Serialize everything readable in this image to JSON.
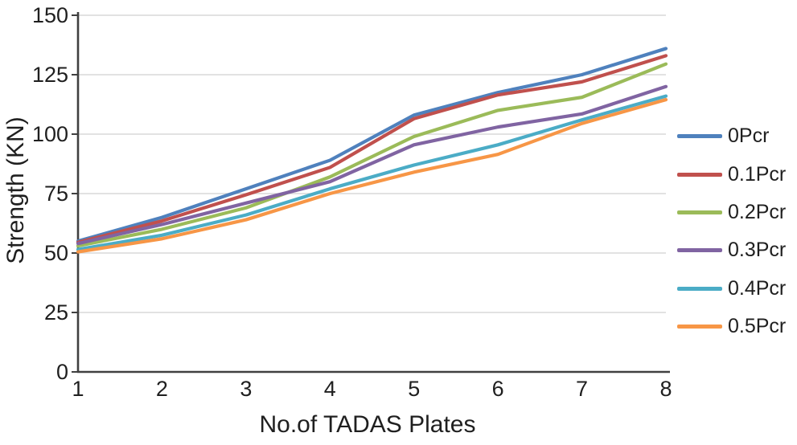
{
  "figure": {
    "background": "#ffffff",
    "axis_color": "#404040",
    "grid_color": "#d9d9d9",
    "text_color": "#1f1f1f"
  },
  "chart_data": {
    "type": "line",
    "title": "",
    "xlabel": "No.of TADAS Plates",
    "ylabel": "Strength (KN)",
    "x": [
      1,
      2,
      3,
      4,
      5,
      6,
      7,
      8
    ],
    "xticks": [
      1,
      2,
      3,
      4,
      5,
      6,
      7,
      8
    ],
    "yticks": [
      0,
      25,
      50,
      75,
      100,
      125,
      150
    ],
    "xlim": [
      1,
      8
    ],
    "ylim": [
      0,
      150
    ],
    "grid": "horizontal",
    "legend_position": "right",
    "series": [
      {
        "name": "0Pcr",
        "color": "#4F81BD",
        "values": [
          55,
          65,
          77,
          89,
          108,
          117.5,
          125,
          136
        ]
      },
      {
        "name": "0.1Pcr",
        "color": "#C0504D",
        "values": [
          54.5,
          63.5,
          74.5,
          86,
          106.5,
          116.5,
          122,
          133
        ]
      },
      {
        "name": "0.2Pcr",
        "color": "#9BBB59",
        "values": [
          53,
          60,
          69,
          82,
          99,
          110,
          115.5,
          129.5
        ]
      },
      {
        "name": "0.3Pcr",
        "color": "#8064A2",
        "values": [
          54,
          62,
          71,
          80,
          95.5,
          103,
          108.5,
          120
        ]
      },
      {
        "name": "0.4Pcr",
        "color": "#4BACC6",
        "values": [
          51.5,
          57.5,
          66,
          77,
          87,
          95.5,
          106,
          116
        ]
      },
      {
        "name": "0.5Pcr",
        "color": "#F79646",
        "values": [
          50.5,
          56,
          64,
          75,
          84,
          91.5,
          104.5,
          114.5
        ]
      }
    ]
  }
}
